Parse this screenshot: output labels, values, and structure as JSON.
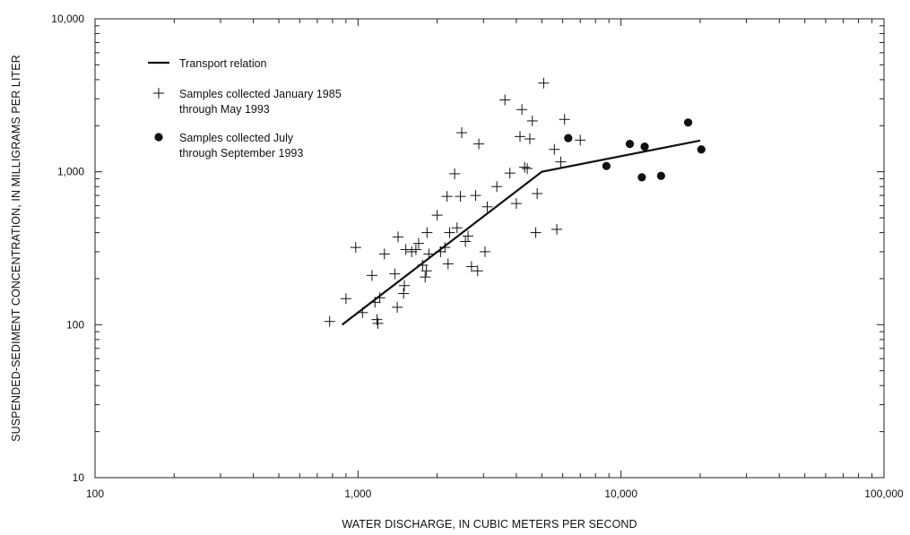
{
  "chart_data": {
    "type": "scatter",
    "title": "",
    "xlabel": "WATER DISCHARGE, IN CUBIC METERS PER SECOND",
    "ylabel": "SUSPENDED-SEDIMENT CONCENTRATION, IN MILLIGRAMS PER LITER",
    "x_scale": "log",
    "y_scale": "log",
    "xlim": [
      100,
      100000
    ],
    "ylim": [
      10,
      10000
    ],
    "x_ticks": [
      {
        "value": 100,
        "label": "100"
      },
      {
        "value": 1000,
        "label": "1,000"
      },
      {
        "value": 10000,
        "label": "10,000"
      },
      {
        "value": 100000,
        "label": "100,000"
      }
    ],
    "y_ticks": [
      {
        "value": 10,
        "label": "10"
      },
      {
        "value": 100,
        "label": "100"
      },
      {
        "value": 1000,
        "label": "1,000"
      },
      {
        "value": 10000,
        "label": "10,000"
      }
    ],
    "grid": false,
    "legend_position": "top-left",
    "series": [
      {
        "name": "Transport relation",
        "kind": "line",
        "points": [
          [
            870,
            100
          ],
          [
            5000,
            1000
          ],
          [
            20000,
            1600
          ]
        ]
      },
      {
        "name": "Samples collected January 1985\nthrough May 1993",
        "kind": "plus",
        "points": [
          [
            780,
            105
          ],
          [
            900,
            148
          ],
          [
            980,
            320
          ],
          [
            1040,
            120
          ],
          [
            1130,
            210
          ],
          [
            1160,
            140
          ],
          [
            1180,
            108
          ],
          [
            1190,
            102
          ],
          [
            1210,
            150
          ],
          [
            1260,
            290
          ],
          [
            1380,
            215
          ],
          [
            1410,
            130
          ],
          [
            1420,
            375
          ],
          [
            1490,
            160
          ],
          [
            1500,
            180
          ],
          [
            1520,
            310
          ],
          [
            1600,
            300
          ],
          [
            1660,
            310
          ],
          [
            1700,
            340
          ],
          [
            1760,
            245
          ],
          [
            1800,
            205
          ],
          [
            1820,
            225
          ],
          [
            1830,
            400
          ],
          [
            1860,
            290
          ],
          [
            2000,
            520
          ],
          [
            2060,
            300
          ],
          [
            2140,
            320
          ],
          [
            2180,
            690
          ],
          [
            2200,
            250
          ],
          [
            2230,
            400
          ],
          [
            2330,
            970
          ],
          [
            2380,
            430
          ],
          [
            2450,
            690
          ],
          [
            2480,
            1800
          ],
          [
            2560,
            350
          ],
          [
            2620,
            380
          ],
          [
            2700,
            240
          ],
          [
            2800,
            700
          ],
          [
            2850,
            225
          ],
          [
            2880,
            1520
          ],
          [
            3040,
            300
          ],
          [
            3100,
            590
          ],
          [
            3370,
            800
          ],
          [
            3620,
            2950
          ],
          [
            3780,
            980
          ],
          [
            4000,
            620
          ],
          [
            4130,
            1700
          ],
          [
            4200,
            2550
          ],
          [
            4300,
            1070
          ],
          [
            4400,
            1050
          ],
          [
            4500,
            1640
          ],
          [
            4600,
            2150
          ],
          [
            4740,
            400
          ],
          [
            4800,
            720
          ],
          [
            5080,
            3800
          ],
          [
            5580,
            1400
          ],
          [
            5700,
            420
          ],
          [
            5900,
            1160
          ],
          [
            6100,
            2200
          ],
          [
            7000,
            1610
          ]
        ]
      },
      {
        "name": "Samples collected July\nthrough September 1993",
        "kind": "dot",
        "points": [
          [
            6300,
            1660
          ],
          [
            8800,
            1090
          ],
          [
            10800,
            1520
          ],
          [
            12000,
            920
          ],
          [
            12300,
            1460
          ],
          [
            14200,
            940
          ],
          [
            18000,
            2100
          ],
          [
            20200,
            1400
          ]
        ]
      }
    ]
  }
}
